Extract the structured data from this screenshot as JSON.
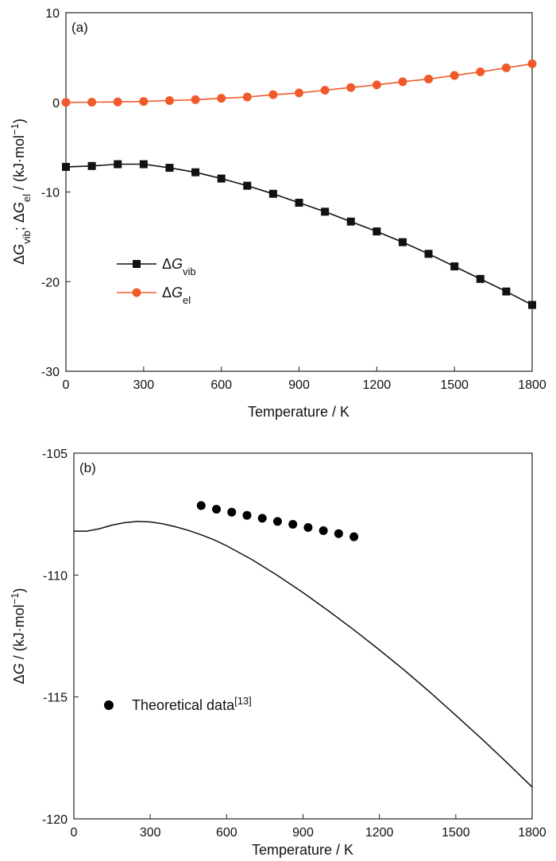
{
  "chart_data": [
    {
      "type": "line",
      "panel_label": "(a)",
      "xlabel": "Temperature / K",
      "ylabel": {
        "base1": "Δ",
        "g1": "G",
        "sub1": "vib",
        "sep": "; ",
        "base2": "Δ",
        "g2": "G",
        "sub2": "el",
        "unit": " / (kJ·mol",
        "sup": "−1",
        "close": ")"
      },
      "xlim": [
        0,
        1800
      ],
      "ylim": [
        -30,
        10
      ],
      "xticks": [
        0,
        300,
        600,
        900,
        1200,
        1500,
        1800
      ],
      "yticks": [
        10,
        0,
        -10,
        -20,
        -30
      ],
      "xtick_labels": [
        "0",
        "300",
        "600",
        "900",
        "1200",
        "1500",
        "1800"
      ],
      "ytick_labels": [
        "10",
        "0",
        "-10",
        "-20",
        "-30"
      ],
      "grid": false,
      "legend_position": "center-left",
      "x": [
        0,
        100,
        200,
        300,
        400,
        500,
        600,
        700,
        800,
        900,
        1000,
        1100,
        1200,
        1300,
        1400,
        1500,
        1600,
        1700,
        1800
      ],
      "series": [
        {
          "name": "ΔG_vib",
          "legend": {
            "base": "Δ",
            "g": "G",
            "sub": "vib"
          },
          "color": "#111111",
          "marker": "square",
          "values": [
            -7.2,
            -7.1,
            -6.9,
            -6.9,
            -7.3,
            -7.8,
            -8.5,
            -9.3,
            -10.2,
            -11.2,
            -12.2,
            -13.3,
            -14.4,
            -15.6,
            -16.9,
            -18.3,
            -19.7,
            -21.1,
            -22.6
          ]
        },
        {
          "name": "ΔG_el",
          "legend": {
            "base": "Δ",
            "g": "G",
            "sub": "el"
          },
          "color": "#f05a2a",
          "marker": "circle",
          "values": [
            0.0,
            0.02,
            0.05,
            0.1,
            0.2,
            0.3,
            0.45,
            0.6,
            0.85,
            1.05,
            1.35,
            1.65,
            1.95,
            2.3,
            2.6,
            3.0,
            3.4,
            3.85,
            4.3
          ]
        }
      ]
    },
    {
      "type": "line",
      "panel_label": "(b)",
      "xlabel": "Temperature / K",
      "ylabel": {
        "base": "Δ",
        "g": "G",
        "unit": " / (kJ·mol",
        "sup": "−1",
        "close": ")"
      },
      "xlim": [
        0,
        1800
      ],
      "ylim": [
        -120,
        -105
      ],
      "xticks": [
        0,
        300,
        600,
        900,
        1200,
        1500,
        1800
      ],
      "yticks": [
        -105,
        -110,
        -115,
        -120
      ],
      "xtick_labels": [
        "0",
        "300",
        "600",
        "900",
        "1200",
        "1500",
        "1800"
      ],
      "ytick_labels": [
        "-105",
        "-110",
        "-115",
        "-120"
      ],
      "grid": false,
      "legend_position": "bottom-left",
      "line": {
        "color": "#111111",
        "x": [
          0,
          50,
          100,
          150,
          200,
          250,
          300,
          350,
          400,
          450,
          500,
          550,
          600,
          700,
          800,
          900,
          1000,
          1100,
          1200,
          1300,
          1400,
          1500,
          1600,
          1700,
          1800
        ],
        "values": [
          -108.2,
          -108.2,
          -108.1,
          -107.95,
          -107.85,
          -107.8,
          -107.82,
          -107.9,
          -108.02,
          -108.17,
          -108.35,
          -108.55,
          -108.8,
          -109.37,
          -110.02,
          -110.72,
          -111.47,
          -112.25,
          -113.07,
          -113.92,
          -114.82,
          -115.75,
          -116.7,
          -117.68,
          -118.7
        ]
      },
      "scatter": {
        "name": "Theoretical data[13]",
        "legend": {
          "text": "Theoretical data",
          "sup": "[13]"
        },
        "color": "#000000",
        "x": [
          500,
          560,
          620,
          680,
          740,
          800,
          860,
          920,
          980,
          1040,
          1100
        ],
        "values": [
          -107.15,
          -107.3,
          -107.42,
          -107.55,
          -107.67,
          -107.8,
          -107.92,
          -108.05,
          -108.18,
          -108.3,
          -108.43
        ]
      }
    }
  ]
}
